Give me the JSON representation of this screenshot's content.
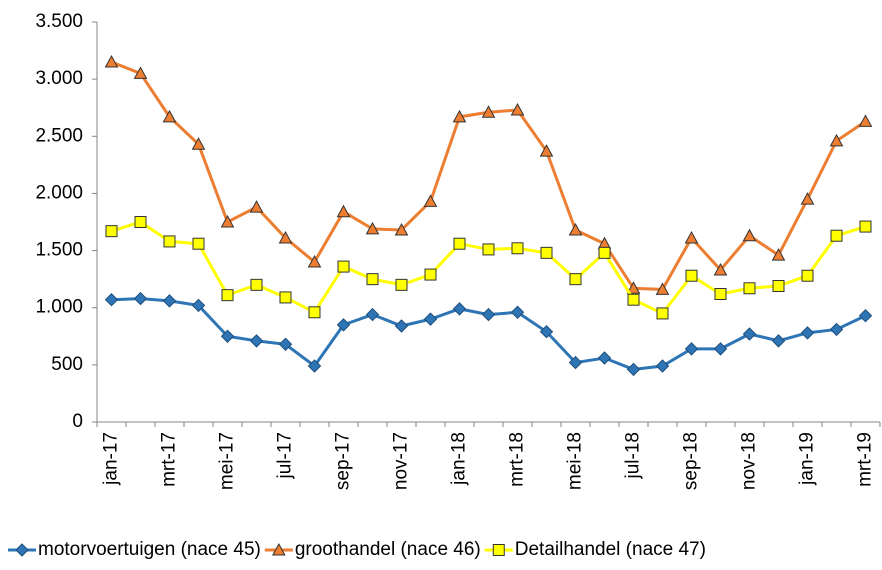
{
  "chart_data": {
    "type": "line",
    "categories": [
      "jan-17",
      null,
      "mrt-17",
      null,
      "mei-17",
      null,
      "jul-17",
      null,
      "sep-17",
      null,
      "nov-17",
      null,
      "jan-18",
      null,
      "mrt-18",
      null,
      "mei-18",
      null,
      "jul-18",
      null,
      "sep-18",
      null,
      "nov-18",
      null,
      "jan-19",
      null,
      "mrt-19"
    ],
    "series": [
      {
        "name": "motorvoertuigen (nace 45)",
        "color": "#2e75b6",
        "marker": "diamond",
        "values": [
          1070,
          1080,
          1060,
          1020,
          750,
          710,
          680,
          490,
          850,
          940,
          840,
          900,
          990,
          940,
          960,
          790,
          520,
          560,
          460,
          490,
          640,
          640,
          770,
          710,
          780,
          810,
          930
        ]
      },
      {
        "name": "groothandel (nace 46)",
        "color": "#ed7d31",
        "marker": "triangle",
        "values": [
          3150,
          3050,
          2670,
          2430,
          1750,
          1880,
          1610,
          1400,
          1840,
          1690,
          1680,
          1930,
          2670,
          2710,
          2730,
          2370,
          1680,
          1560,
          1170,
          1160,
          1610,
          1330,
          1630,
          1460,
          1950,
          2460,
          2630
        ]
      },
      {
        "name": "Detailhandel (nace 47)",
        "color": "#ffff00",
        "marker": "square",
        "values": [
          1670,
          1750,
          1580,
          1560,
          1110,
          1200,
          1090,
          960,
          1360,
          1250,
          1200,
          1290,
          1560,
          1510,
          1520,
          1480,
          1250,
          1480,
          1070,
          950,
          1280,
          1120,
          1170,
          1190,
          1280,
          1630,
          1710
        ]
      }
    ],
    "ylim": [
      0,
      3500
    ],
    "yticks": [
      0,
      500,
      {
        "value": 1000,
        "label": "1.000"
      },
      {
        "value": 1500,
        "label": "1.500"
      },
      {
        "value": 2000,
        "label": "2.000"
      },
      {
        "value": 2500,
        "label": "2.500"
      },
      {
        "value": 3000,
        "label": "3.000"
      },
      {
        "value": 3500,
        "label": "3.500"
      }
    ],
    "grid": false,
    "legend": "bottom"
  }
}
